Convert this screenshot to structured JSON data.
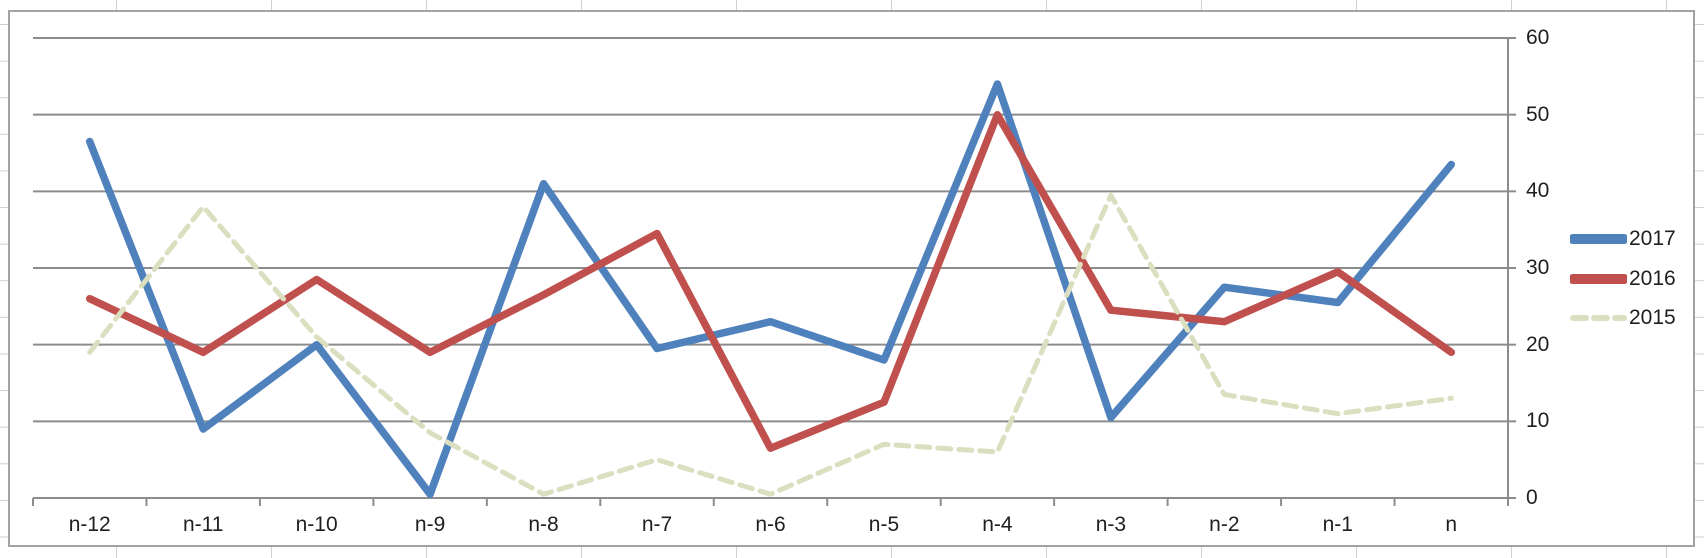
{
  "chart_data": {
    "type": "line",
    "categories": [
      "n-12",
      "n-11",
      "n-10",
      "n-9",
      "n-8",
      "n-7",
      "n-6",
      "n-5",
      "n-4",
      "n-3",
      "n-2",
      "n-1",
      "n"
    ],
    "series": [
      {
        "name": "2017",
        "color": "#4F81BD",
        "style": "solid",
        "values": [
          46.5,
          9,
          20,
          0.5,
          41,
          19.5,
          23,
          18,
          54,
          10.5,
          27.5,
          25.5,
          43.5
        ]
      },
      {
        "name": "2016",
        "color": "#C0504D",
        "style": "solid",
        "values": [
          26,
          19,
          28.5,
          19,
          26.5,
          34.5,
          6.5,
          12.5,
          50,
          24.5,
          23,
          29.5,
          19
        ]
      },
      {
        "name": "2015",
        "color": "#DBDFC0",
        "style": "dashed",
        "values": [
          19,
          38,
          21,
          8.5,
          0.5,
          5,
          0.5,
          7,
          6,
          39.5,
          13.5,
          11,
          13
        ]
      }
    ],
    "title": "",
    "xlabel": "",
    "ylabel": "",
    "ylim": [
      0,
      60
    ],
    "yticks": [
      0,
      10,
      20,
      30,
      40,
      50,
      60
    ],
    "grid": true,
    "legend_position": "right"
  },
  "colors": {
    "gridline": "#8c8c8c",
    "axis": "#8c8c8c",
    "chart_border": "#a2a2a2",
    "sheet_line": "#d0d0d0",
    "text": "#1f1f1f"
  }
}
